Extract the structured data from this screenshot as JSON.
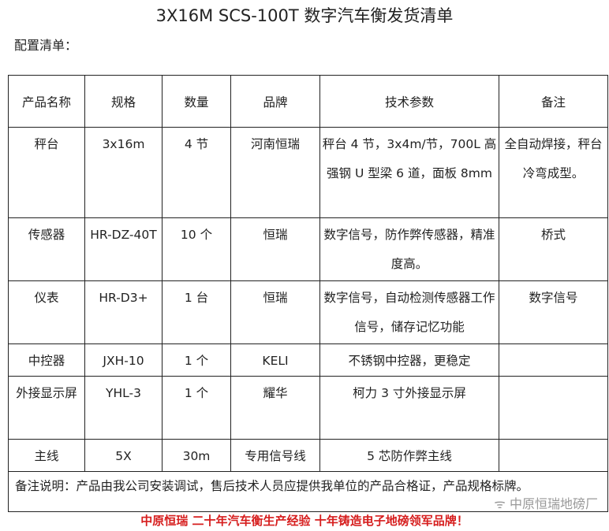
{
  "title": "3X16M SCS-100T 数字汽车衡发货清单",
  "subtitle": "配置清单：",
  "headers": [
    "产品名称",
    "规格",
    "数量",
    "品牌",
    "技术参数",
    "备注"
  ],
  "rows": [
    [
      "秤台",
      "3x16m",
      "4 节",
      "河南恒瑞",
      "秤台 4 节，3x4m/节，700L 高强钢 U 型梁 6 道，面板 8mm",
      "全自动焊接，秤台冷弯成型。"
    ],
    [
      "传感器",
      "HR-DZ-40T",
      "10 个",
      "恒瑞",
      "数字信号，防作弊传感器，精准度高。",
      "桥式"
    ],
    [
      "仪表",
      "HR-D3+",
      "1 台",
      "恒瑞",
      "数字信号，自动检测传感器工作信号，储存记忆功能",
      "数字信号"
    ],
    [
      "中控器",
      "JXH-10",
      "1 个",
      "KELI",
      "不锈钢中控器，更稳定",
      ""
    ],
    [
      "外接显示屏",
      "YHL-3",
      "1 个",
      "耀华",
      "柯力 3 寸外接显示屏",
      ""
    ],
    [
      "主线",
      "5X",
      "30m",
      "专用信号线",
      "5 芯防作弊主线",
      ""
    ]
  ],
  "note": "备注说明：产品由我公司安装调试，售后技术人员应提供我单位的产品合格证，产品规格标牌。",
  "watermark": "中原恒瑞地磅厂",
  "slogan": "中原恒瑞 二十年汽车衡生产经验 十年铸造电子地磅领军品牌！"
}
